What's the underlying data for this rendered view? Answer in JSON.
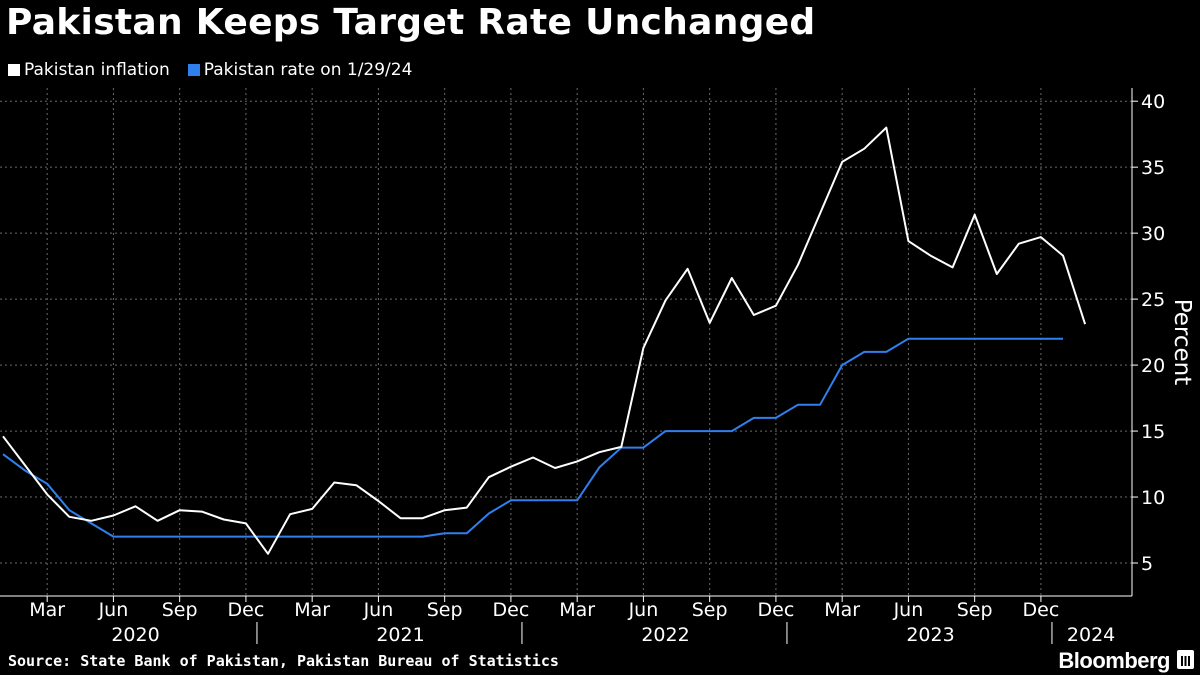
{
  "header": {
    "title": "Pakistan Keeps Target Rate Unchanged"
  },
  "legend": [
    {
      "label": "Pakistan inflation",
      "color": "#ffffff"
    },
    {
      "label": "Pakistan rate on 1/29/24",
      "color": "#2f80ed"
    }
  ],
  "footer": {
    "source": "Source: State Bank of Pakistan, Pakistan Bureau of Statistics",
    "brand": "Bloomberg"
  },
  "chart_data": {
    "type": "line",
    "ylabel": "Percent",
    "ylim": [
      2.5,
      41
    ],
    "y_ticks": [
      5,
      10,
      15,
      20,
      25,
      30,
      35,
      40
    ],
    "y_axis_side": "right",
    "grid": true,
    "legend_placement": "top-left",
    "x_start": "2020-01",
    "x_end": "2024-01",
    "x_month_ticks": [
      "Mar",
      "Jun",
      "Sep",
      "Dec",
      "Mar",
      "Jun",
      "Sep",
      "Dec",
      "Mar",
      "Jun",
      "Sep",
      "Dec",
      "Mar",
      "Jun",
      "Sep",
      "Dec"
    ],
    "x_year_labels": [
      "2020",
      "2021",
      "2022",
      "2023",
      "2024"
    ],
    "series": [
      {
        "name": "Pakistan inflation",
        "color": "#ffffff",
        "dates": [
          "2020-01",
          "2020-02",
          "2020-03",
          "2020-04",
          "2020-05",
          "2020-06",
          "2020-07",
          "2020-08",
          "2020-09",
          "2020-10",
          "2020-11",
          "2020-12",
          "2021-01",
          "2021-02",
          "2021-03",
          "2021-04",
          "2021-05",
          "2021-06",
          "2021-07",
          "2021-08",
          "2021-09",
          "2021-10",
          "2021-11",
          "2021-12",
          "2022-01",
          "2022-02",
          "2022-03",
          "2022-04",
          "2022-05",
          "2022-06",
          "2022-07",
          "2022-08",
          "2022-09",
          "2022-10",
          "2022-11",
          "2022-12",
          "2023-01",
          "2023-02",
          "2023-03",
          "2023-04",
          "2023-05",
          "2023-06",
          "2023-07",
          "2023-08",
          "2023-09",
          "2023-10",
          "2023-11",
          "2023-12",
          "2024-01",
          "2024-02"
        ],
        "values": [
          14.6,
          12.4,
          10.2,
          8.5,
          8.2,
          8.6,
          9.3,
          8.2,
          9.0,
          8.9,
          8.3,
          8.0,
          5.7,
          8.7,
          9.1,
          11.1,
          10.9,
          9.7,
          8.4,
          8.4,
          9.0,
          9.2,
          11.5,
          12.3,
          13.0,
          12.2,
          12.7,
          13.4,
          13.8,
          21.3,
          24.9,
          27.3,
          23.2,
          26.6,
          23.8,
          24.5,
          27.6,
          31.5,
          35.4,
          36.4,
          38.0,
          29.4,
          28.3,
          27.4,
          31.4,
          26.9,
          29.2,
          29.7,
          28.3,
          23.1
        ]
      },
      {
        "name": "Pakistan rate on 1/29/24",
        "color": "#2f80ed",
        "dates": [
          "2020-01",
          "2020-02",
          "2020-03",
          "2020-04",
          "2020-05",
          "2020-06",
          "2020-07",
          "2020-08",
          "2020-09",
          "2020-10",
          "2020-11",
          "2020-12",
          "2021-01",
          "2021-02",
          "2021-03",
          "2021-04",
          "2021-05",
          "2021-06",
          "2021-07",
          "2021-08",
          "2021-09",
          "2021-10",
          "2021-11",
          "2021-12",
          "2022-01",
          "2022-02",
          "2022-03",
          "2022-04",
          "2022-05",
          "2022-06",
          "2022-07",
          "2022-08",
          "2022-09",
          "2022-10",
          "2022-11",
          "2022-12",
          "2023-01",
          "2023-02",
          "2023-03",
          "2023-04",
          "2023-05",
          "2023-06",
          "2023-07",
          "2023-08",
          "2023-09",
          "2023-10",
          "2023-11",
          "2023-12",
          "2024-01"
        ],
        "values": [
          13.25,
          12.0,
          11.0,
          9.0,
          8.0,
          7.0,
          7.0,
          7.0,
          7.0,
          7.0,
          7.0,
          7.0,
          7.0,
          7.0,
          7.0,
          7.0,
          7.0,
          7.0,
          7.0,
          7.0,
          7.25,
          7.25,
          8.75,
          9.75,
          9.75,
          9.75,
          9.75,
          12.25,
          13.75,
          13.75,
          15.0,
          15.0,
          15.0,
          15.0,
          16.0,
          16.0,
          17.0,
          17.0,
          20.0,
          21.0,
          21.0,
          22.0,
          22.0,
          22.0,
          22.0,
          22.0,
          22.0,
          22.0,
          22.0
        ]
      }
    ]
  }
}
